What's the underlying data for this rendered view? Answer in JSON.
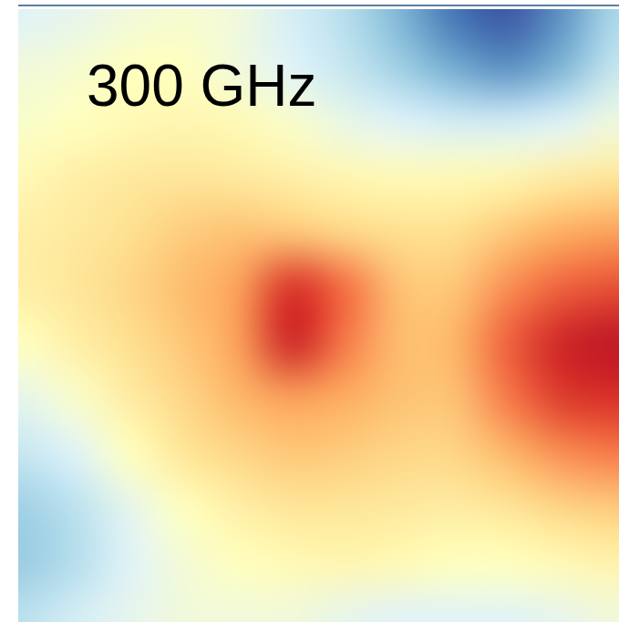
{
  "chart_data": {
    "type": "heatmap",
    "title": "300 GHz",
    "zlim": [
      0,
      1
    ],
    "tick_labels": false,
    "z": [
      [
        0.4,
        0.42,
        0.45,
        0.47,
        0.45,
        0.38,
        0.32,
        0.22,
        0.1,
        0.05,
        0.15,
        0.3
      ],
      [
        0.45,
        0.47,
        0.5,
        0.5,
        0.45,
        0.4,
        0.35,
        0.28,
        0.2,
        0.15,
        0.22,
        0.35
      ],
      [
        0.48,
        0.5,
        0.52,
        0.53,
        0.52,
        0.48,
        0.43,
        0.4,
        0.38,
        0.38,
        0.4,
        0.45
      ],
      [
        0.52,
        0.55,
        0.57,
        0.58,
        0.57,
        0.55,
        0.53,
        0.52,
        0.52,
        0.53,
        0.56,
        0.58
      ],
      [
        0.55,
        0.57,
        0.6,
        0.64,
        0.66,
        0.65,
        0.62,
        0.6,
        0.6,
        0.65,
        0.7,
        0.72
      ],
      [
        0.55,
        0.58,
        0.62,
        0.67,
        0.72,
        0.9,
        0.8,
        0.66,
        0.65,
        0.75,
        0.82,
        0.85
      ],
      [
        0.5,
        0.55,
        0.6,
        0.65,
        0.72,
        0.92,
        0.78,
        0.67,
        0.68,
        0.82,
        0.92,
        0.95
      ],
      [
        0.42,
        0.48,
        0.56,
        0.62,
        0.68,
        0.72,
        0.7,
        0.66,
        0.66,
        0.78,
        0.88,
        0.9
      ],
      [
        0.35,
        0.4,
        0.5,
        0.58,
        0.62,
        0.65,
        0.64,
        0.62,
        0.62,
        0.68,
        0.75,
        0.78
      ],
      [
        0.28,
        0.33,
        0.42,
        0.5,
        0.55,
        0.58,
        0.58,
        0.57,
        0.56,
        0.58,
        0.62,
        0.64
      ],
      [
        0.27,
        0.32,
        0.4,
        0.46,
        0.5,
        0.52,
        0.53,
        0.52,
        0.5,
        0.5,
        0.52,
        0.54
      ],
      [
        0.33,
        0.38,
        0.42,
        0.45,
        0.45,
        0.45,
        0.42,
        0.4,
        0.4,
        0.4,
        0.42,
        0.45
      ]
    ]
  }
}
